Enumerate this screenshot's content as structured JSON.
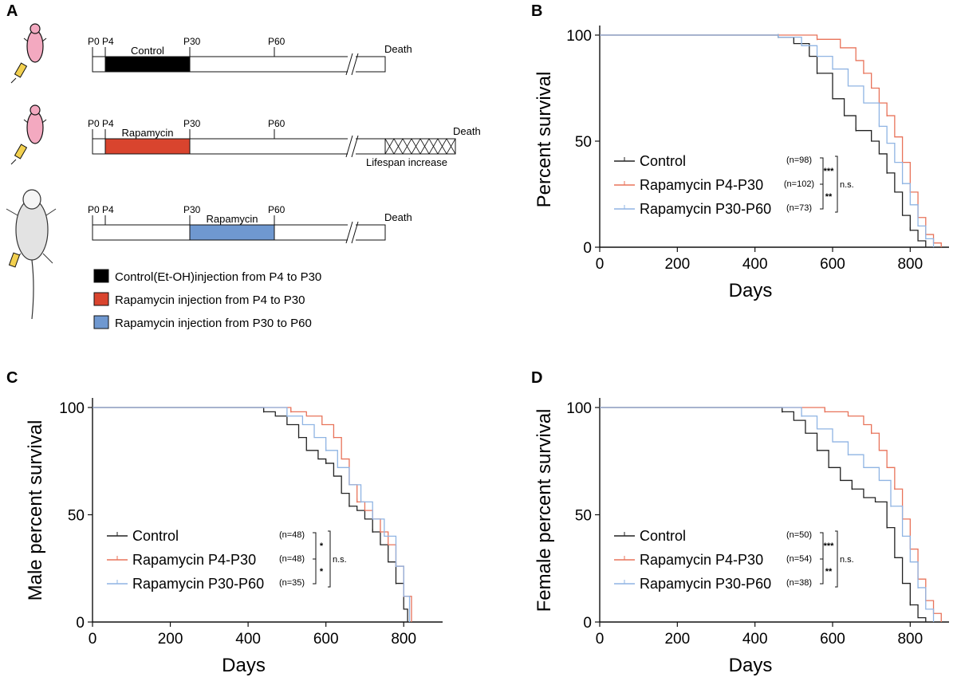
{
  "colors": {
    "control": "#222222",
    "rapa_early": "#e8735a",
    "rapa_late": "#8fb4e3",
    "bar_control": "#000000",
    "bar_early": "#d9442e",
    "bar_late": "#6f98d0"
  },
  "panel_a": {
    "letter": "A",
    "rows": [
      {
        "ticks": [
          "P0",
          "P4",
          "P30",
          "P60"
        ],
        "bar_label": "Control",
        "end_label": "Death"
      },
      {
        "ticks": [
          "P0",
          "P4",
          "P30",
          "P60"
        ],
        "bar_label": "Rapamycin",
        "end_label": "Death",
        "extra_label": "Lifespan increase"
      },
      {
        "ticks": [
          "P0",
          "P4",
          "P30",
          "P60"
        ],
        "bar_label": "Rapamycin",
        "end_label": "Death"
      }
    ],
    "key": [
      "Control(Et-OH)injection from P4 to P30",
      "Rapamycin injection from P4 to P30",
      "Rapamycin injection from P30 to P60"
    ]
  },
  "chart_data": [
    {
      "panel": "B",
      "type": "line",
      "xlabel": "Days",
      "ylabel": "Percent survival",
      "xlim": [
        0,
        900
      ],
      "ylim": [
        0,
        100
      ],
      "xticks": [
        "0",
        "200",
        "400",
        "600",
        "800"
      ],
      "yticks": [
        "0",
        "50",
        "100"
      ],
      "series": [
        {
          "name": "Control",
          "n": "(n=98)",
          "color_key": "control",
          "x": [
            0,
            380,
            460,
            500,
            540,
            560,
            600,
            630,
            660,
            700,
            720,
            740,
            760,
            780,
            800,
            820,
            840
          ],
          "y": [
            100,
            100,
            99,
            96,
            90,
            82,
            70,
            62,
            55,
            50,
            44,
            35,
            26,
            15,
            8,
            3,
            0
          ]
        },
        {
          "name": "Rapamycin P4-P30",
          "n": "(n=102)",
          "color_key": "rapa_early",
          "x": [
            0,
            500,
            560,
            620,
            660,
            680,
            700,
            720,
            740,
            760,
            780,
            800,
            820,
            840,
            860,
            880
          ],
          "y": [
            100,
            100,
            98,
            94,
            88,
            82,
            75,
            68,
            62,
            52,
            40,
            26,
            14,
            6,
            2,
            0
          ]
        },
        {
          "name": "Rapamycin P30-P60",
          "n": "(n=73)",
          "color_key": "rapa_late",
          "x": [
            0,
            400,
            460,
            520,
            560,
            600,
            640,
            680,
            720,
            740,
            760,
            780,
            800,
            820,
            840,
            860
          ],
          "y": [
            100,
            100,
            99,
            95,
            90,
            84,
            76,
            68,
            57,
            49,
            40,
            30,
            20,
            10,
            4,
            0
          ]
        }
      ],
      "annotations": {
        "sig_top": "***",
        "sig_bottom": "**",
        "sig_right": "n.s."
      }
    },
    {
      "panel": "C",
      "type": "line",
      "xlabel": "Days",
      "ylabel": "Male percent survival",
      "xlim": [
        0,
        900
      ],
      "ylim": [
        0,
        100
      ],
      "xticks": [
        "0",
        "200",
        "400",
        "600",
        "800"
      ],
      "yticks": [
        "0",
        "50",
        "100"
      ],
      "series": [
        {
          "name": "Control",
          "n": "(n=48)",
          "color_key": "control",
          "x": [
            0,
            390,
            440,
            470,
            500,
            530,
            550,
            580,
            600,
            620,
            640,
            660,
            680,
            700,
            720,
            740,
            760,
            780,
            800,
            810
          ],
          "y": [
            100,
            100,
            98,
            96,
            92,
            86,
            80,
            76,
            74,
            68,
            60,
            54,
            52,
            48,
            42,
            36,
            28,
            18,
            6,
            0
          ]
        },
        {
          "name": "Rapamycin P4-P30",
          "n": "(n=48)",
          "color_key": "rapa_early",
          "x": [
            0,
            470,
            510,
            550,
            590,
            620,
            640,
            660,
            680,
            700,
            720,
            740,
            760,
            780,
            800,
            820
          ],
          "y": [
            100,
            100,
            98,
            96,
            92,
            86,
            76,
            64,
            56,
            52,
            48,
            42,
            36,
            26,
            12,
            0
          ]
        },
        {
          "name": "Rapamycin P30-P60",
          "n": "(n=35)",
          "color_key": "rapa_late",
          "x": [
            0,
            460,
            500,
            540,
            570,
            600,
            630,
            660,
            690,
            720,
            750,
            780,
            800,
            815
          ],
          "y": [
            100,
            100,
            96,
            92,
            86,
            80,
            72,
            64,
            56,
            48,
            40,
            26,
            12,
            0
          ]
        }
      ],
      "annotations": {
        "sig_top": "*",
        "sig_bottom": "*",
        "sig_right": "n.s."
      }
    },
    {
      "panel": "D",
      "type": "line",
      "xlabel": "Days",
      "ylabel": "Female percent survival",
      "xlim": [
        0,
        900
      ],
      "ylim": [
        0,
        100
      ],
      "xticks": [
        "0",
        "200",
        "400",
        "600",
        "800"
      ],
      "yticks": [
        "0",
        "50",
        "100"
      ],
      "series": [
        {
          "name": "Control",
          "n": "(n=50)",
          "color_key": "control",
          "x": [
            0,
            290,
            470,
            500,
            530,
            560,
            590,
            620,
            650,
            680,
            710,
            740,
            760,
            780,
            800,
            820,
            840
          ],
          "y": [
            100,
            100,
            98,
            94,
            88,
            80,
            72,
            66,
            62,
            58,
            56,
            44,
            30,
            18,
            8,
            2,
            0
          ]
        },
        {
          "name": "Rapamycin P4-P30",
          "n": "(n=54)",
          "color_key": "rapa_early",
          "x": [
            0,
            520,
            580,
            640,
            680,
            700,
            720,
            740,
            760,
            780,
            800,
            820,
            840,
            860,
            880
          ],
          "y": [
            100,
            100,
            98,
            96,
            92,
            88,
            80,
            72,
            62,
            48,
            34,
            20,
            10,
            4,
            0
          ]
        },
        {
          "name": "Rapamycin P30-P60",
          "n": "(n=38)",
          "color_key": "rapa_late",
          "x": [
            0,
            460,
            520,
            560,
            600,
            640,
            680,
            720,
            750,
            780,
            800,
            820,
            840,
            860
          ],
          "y": [
            100,
            100,
            96,
            90,
            84,
            78,
            72,
            66,
            54,
            40,
            28,
            16,
            6,
            0
          ]
        }
      ],
      "annotations": {
        "sig_top": "***",
        "sig_bottom": "**",
        "sig_right": "n.s."
      }
    }
  ]
}
